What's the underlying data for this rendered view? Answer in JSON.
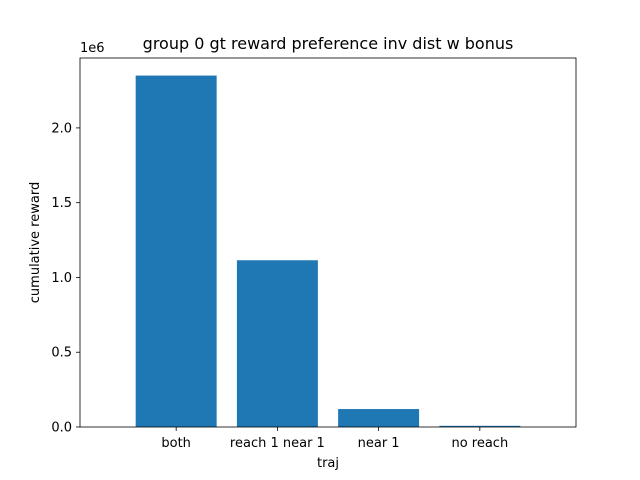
{
  "chart_data": {
    "type": "bar",
    "title": "group 0 gt reward preference inv dist w bonus",
    "xlabel": "traj",
    "ylabel": "cumulative reward",
    "y_multiplier_label": "1e6",
    "categories": [
      "both",
      "reach 1 near 1",
      "near 1",
      "no reach"
    ],
    "values": [
      2350000,
      1115000,
      120000,
      8000
    ],
    "ylim": [
      0,
      2467500
    ],
    "y_ticks": [
      0,
      500000,
      1000000,
      1500000,
      2000000
    ],
    "y_tick_labels": [
      "0.0",
      "0.5",
      "1.0",
      "1.5",
      "2.0"
    ],
    "grid": false,
    "bar_color": "#1f77b4"
  }
}
